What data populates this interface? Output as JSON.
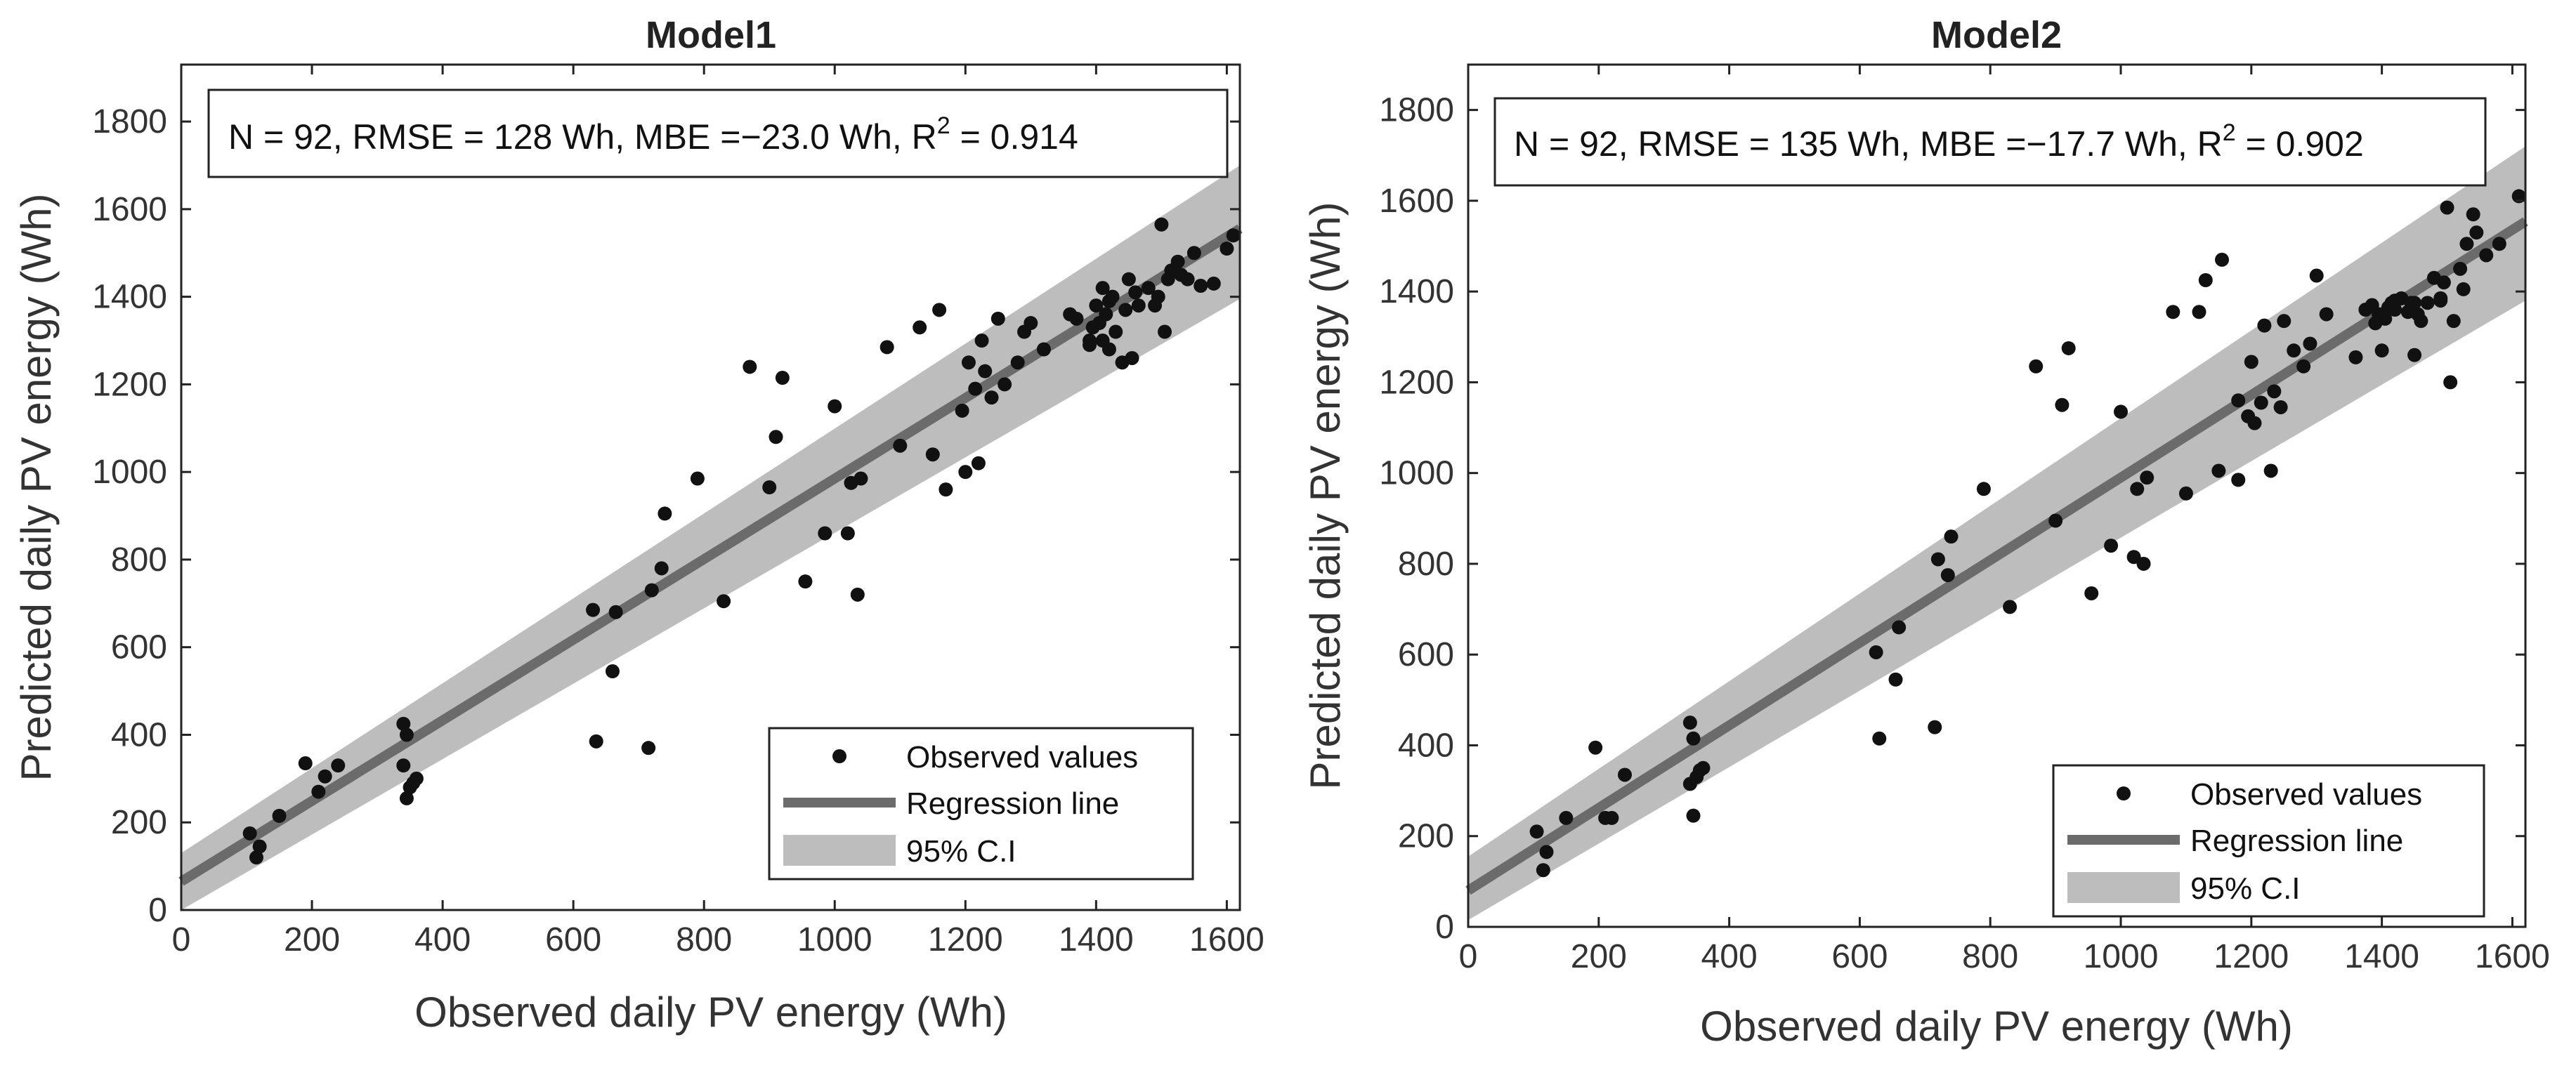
{
  "chart_data": [
    {
      "type": "scatter",
      "title": "Model1",
      "xlabel": "Observed daily PV energy (Wh)",
      "ylabel": "Predicted daily PV energy (Wh)",
      "xlim": [
        0,
        1620
      ],
      "ylim": [
        0,
        1930
      ],
      "xticks": [
        0,
        200,
        400,
        600,
        800,
        1000,
        1200,
        1400,
        1600
      ],
      "yticks": [
        0,
        200,
        400,
        600,
        800,
        1000,
        1200,
        1400,
        1600,
        1800
      ],
      "stats": {
        "prefix": "N = 92, RMSE = 128 Wh, MBE =−23.0 Wh, R",
        "sup": "2",
        "suffix": " = 0.914"
      },
      "regression": {
        "intercept": 65,
        "slope": 0.92
      },
      "ci": {
        "lower": [
          [
            0,
            0
          ],
          [
            1620,
            1395
          ]
        ],
        "upper": [
          [
            0,
            130
          ],
          [
            1620,
            1700
          ]
        ]
      },
      "legend": {
        "observed": "Observed values",
        "regression": "Regression line",
        "ci": "95% C.I"
      },
      "series": [
        {
          "name": "Observed values",
          "x": [
            105,
            115,
            120,
            150,
            190,
            210,
            220,
            240,
            340,
            345,
            340,
            345,
            350,
            355,
            360,
            630,
            635,
            660,
            665,
            715,
            720,
            735,
            740,
            790,
            830,
            870,
            900,
            910,
            920,
            955,
            985,
            1000,
            1020,
            1025,
            1035,
            1040,
            1080,
            1100,
            1130,
            1150,
            1160,
            1170,
            1195,
            1200,
            1205,
            1215,
            1220,
            1225,
            1230,
            1240,
            1250,
            1260,
            1280,
            1290,
            1300,
            1320,
            1360,
            1370,
            1390,
            1395,
            1400,
            1405,
            1410,
            1410,
            1415,
            1420,
            1425,
            1430,
            1440,
            1445,
            1450,
            1455,
            1460,
            1465,
            1480,
            1490,
            1495,
            1500,
            1505,
            1510,
            1515,
            1520,
            1525,
            1530,
            1540,
            1550,
            1560,
            1580,
            1600,
            1610,
            1390,
            1420
          ],
          "y": [
            175,
            120,
            145,
            215,
            335,
            270,
            305,
            330,
            425,
            400,
            330,
            255,
            280,
            290,
            300,
            685,
            385,
            545,
            680,
            370,
            730,
            780,
            905,
            985,
            705,
            1240,
            965,
            1080,
            1215,
            750,
            860,
            1150,
            860,
            975,
            720,
            985,
            1285,
            1060,
            1330,
            1040,
            1370,
            960,
            1140,
            1000,
            1250,
            1190,
            1020,
            1300,
            1230,
            1170,
            1350,
            1200,
            1250,
            1320,
            1340,
            1280,
            1360,
            1350,
            1290,
            1330,
            1380,
            1340,
            1300,
            1420,
            1360,
            1390,
            1400,
            1320,
            1250,
            1370,
            1440,
            1260,
            1410,
            1380,
            1420,
            1380,
            1400,
            1565,
            1320,
            1440,
            1460,
            1460,
            1480,
            1450,
            1440,
            1500,
            1425,
            1430,
            1510,
            1540,
            1300,
            1280
          ]
        }
      ]
    },
    {
      "type": "scatter",
      "title": "Model2",
      "xlabel": "Observed daily PV energy (Wh)",
      "ylabel": "Predicted daily PV energy (Wh)",
      "xlim": [
        0,
        1620
      ],
      "ylim": [
        0,
        1900
      ],
      "xticks": [
        0,
        200,
        400,
        600,
        800,
        1000,
        1200,
        1400,
        1600
      ],
      "yticks": [
        0,
        200,
        400,
        600,
        800,
        1000,
        1200,
        1400,
        1600,
        1800
      ],
      "stats": {
        "prefix": "N = 92, RMSE = 135 Wh, MBE =−17.7 Wh, R",
        "sup": "2",
        "suffix": " = 0.902"
      },
      "regression": {
        "intercept": 80,
        "slope": 0.91
      },
      "ci": {
        "lower": [
          [
            0,
            15
          ],
          [
            1620,
            1380
          ]
        ],
        "upper": [
          [
            0,
            155
          ],
          [
            1620,
            1720
          ]
        ]
      },
      "legend": {
        "observed": "Observed values",
        "regression": "Regression line",
        "ci": "95% C.I"
      },
      "series": [
        {
          "name": "Observed values",
          "x": [
            105,
            115,
            120,
            150,
            195,
            210,
            220,
            240,
            340,
            345,
            340,
            345,
            350,
            355,
            360,
            625,
            630,
            655,
            660,
            715,
            720,
            735,
            740,
            790,
            830,
            870,
            900,
            910,
            920,
            955,
            985,
            1000,
            1020,
            1025,
            1035,
            1040,
            1080,
            1100,
            1120,
            1130,
            1150,
            1155,
            1180,
            1195,
            1200,
            1205,
            1215,
            1220,
            1230,
            1235,
            1245,
            1250,
            1265,
            1280,
            1290,
            1300,
            1315,
            1360,
            1375,
            1385,
            1390,
            1395,
            1400,
            1405,
            1410,
            1415,
            1420,
            1430,
            1440,
            1445,
            1450,
            1455,
            1460,
            1470,
            1480,
            1490,
            1495,
            1500,
            1505,
            1510,
            1520,
            1525,
            1530,
            1540,
            1545,
            1560,
            1580,
            1610,
            1180,
            1420,
            1450,
            1490
          ],
          "y": [
            210,
            125,
            165,
            240,
            395,
            240,
            240,
            335,
            450,
            415,
            315,
            245,
            330,
            345,
            350,
            605,
            415,
            545,
            660,
            440,
            810,
            775,
            860,
            965,
            705,
            1235,
            895,
            1150,
            1275,
            735,
            840,
            1135,
            815,
            965,
            800,
            990,
            1355,
            955,
            1355,
            1425,
            1005,
            1470,
            985,
            1125,
            1245,
            1110,
            1155,
            1325,
            1005,
            1180,
            1145,
            1335,
            1270,
            1235,
            1285,
            1435,
            1350,
            1255,
            1360,
            1370,
            1330,
            1350,
            1270,
            1340,
            1365,
            1375,
            1380,
            1385,
            1355,
            1375,
            1260,
            1350,
            1335,
            1375,
            1430,
            1385,
            1420,
            1585,
            1200,
            1335,
            1450,
            1405,
            1505,
            1570,
            1530,
            1480,
            1505,
            1610,
            1160,
            1360,
            1375,
            1380
          ]
        }
      ]
    }
  ]
}
